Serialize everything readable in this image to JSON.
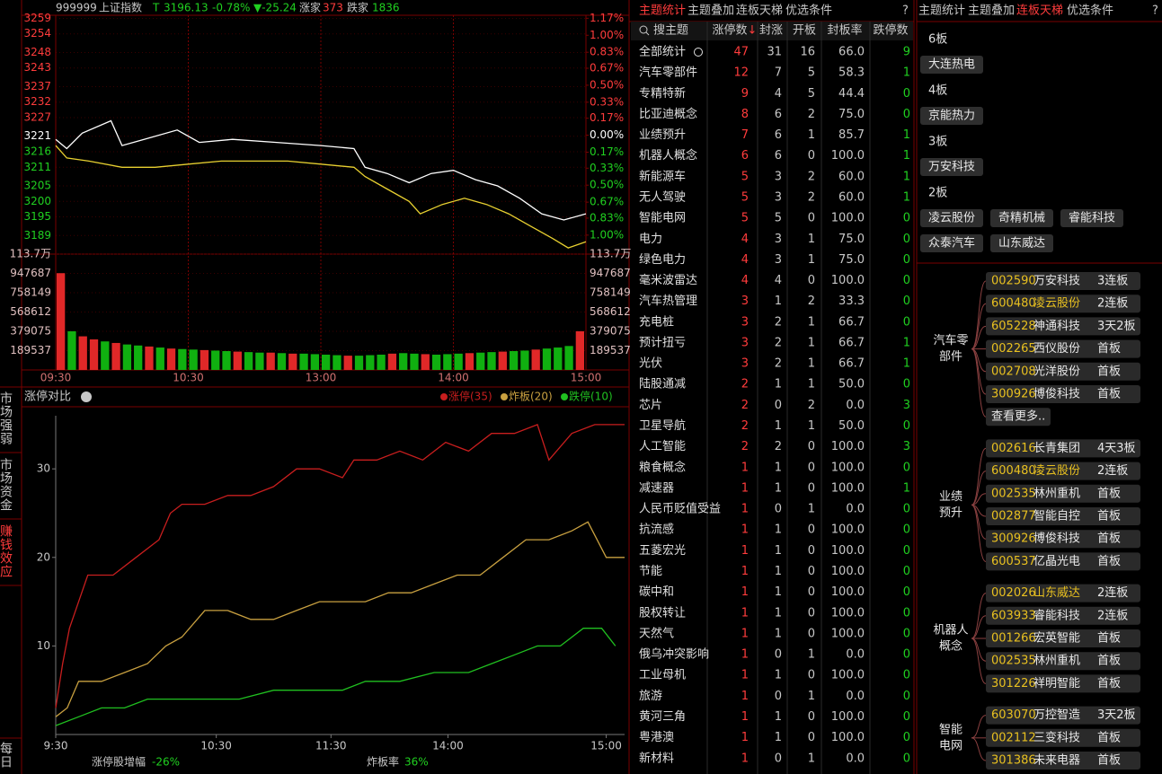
{
  "index_header": {
    "code": "999999",
    "name": "上证指数",
    "flag": "T",
    "price": "3196.13",
    "pct": "-0.78%",
    "change": "▼-25.24",
    "up_label": "涨家",
    "up_count": "373",
    "down_label": "跌家",
    "down_count": "1836"
  },
  "chart_data": [
    {
      "type": "line",
      "series": [
        {
          "color": "#ffffff",
          "x": [
            0,
            5,
            12,
            25,
            30,
            40,
            55,
            65,
            80,
            100,
            120,
            135,
            140,
            150,
            160,
            170,
            180,
            190,
            200,
            210,
            220,
            230,
            240
          ],
          "values": [
            3220,
            3217,
            3222,
            3226,
            3218,
            3220,
            3223,
            3219,
            3220,
            3219,
            3218,
            3217,
            3211,
            3209,
            3206,
            3209,
            3210,
            3207,
            3205,
            3201,
            3196,
            3194,
            3196
          ]
        },
        {
          "color": "#e8d030",
          "x": [
            0,
            5,
            15,
            30,
            45,
            60,
            75,
            90,
            105,
            120,
            135,
            140,
            150,
            160,
            165,
            175,
            185,
            195,
            205,
            215,
            225,
            232,
            240
          ],
          "values": [
            3218,
            3214,
            3213,
            3211,
            3211,
            3212,
            3213,
            3213,
            3213,
            3212,
            3211,
            3208,
            3204,
            3200,
            3196,
            3199,
            3201,
            3199,
            3196,
            3192,
            3188,
            3185,
            3187
          ]
        }
      ],
      "xlim": [
        0,
        240
      ],
      "xticks": [
        {
          "value": 0,
          "label": "09:30"
        },
        {
          "value": 60,
          "label": "10:30"
        },
        {
          "value": 120,
          "label": "13:00"
        },
        {
          "value": 180,
          "label": "14:00"
        },
        {
          "value": 240,
          "label": "15:00"
        }
      ],
      "ylim": [
        3183,
        3260
      ],
      "yticks": [
        3259,
        3254,
        3248,
        3243,
        3237,
        3232,
        3227,
        3221,
        3216,
        3211,
        3205,
        3200,
        3195,
        3189
      ],
      "y2lim": [
        -1.19,
        1.2
      ],
      "y2ticks": [
        {
          "value": 1.17,
          "label": "1.17%"
        },
        {
          "value": 1.0,
          "label": "1.00%"
        },
        {
          "value": 0.83,
          "label": "0.83%"
        },
        {
          "value": 0.67,
          "label": "0.67%"
        },
        {
          "value": 0.5,
          "label": "0.50%"
        },
        {
          "value": 0.33,
          "label": "0.33%"
        },
        {
          "value": 0.17,
          "label": "0.17%"
        },
        {
          "value": 0,
          "label": "0.00%"
        },
        {
          "value": -0.17,
          "label": "0.17%"
        },
        {
          "value": -0.33,
          "label": "0.33%"
        },
        {
          "value": -0.5,
          "label": "0.50%"
        },
        {
          "value": -0.67,
          "label": "0.67%"
        },
        {
          "value": -0.83,
          "label": "0.83%"
        },
        {
          "value": -1.0,
          "label": "1.00%"
        }
      ],
      "grid": true,
      "volume": {
        "ylim": [
          0,
          1137224
        ],
        "yticks": [
          {
            "value": 1137224,
            "label": "113.7万"
          },
          947687,
          758149,
          568612,
          379075,
          189537
        ],
        "values": [
          950000,
          380000,
          330000,
          300000,
          280000,
          265000,
          250000,
          240000,
          230000,
          220000,
          210000,
          205000,
          200000,
          195000,
          190000,
          185000,
          180000,
          175000,
          170000,
          170000,
          165000,
          160000,
          160000,
          155000,
          150000,
          145000,
          140000,
          140000,
          145000,
          150000,
          160000,
          165000,
          160000,
          155000,
          150000,
          155000,
          160000,
          165000,
          170000,
          175000,
          180000,
          185000,
          190000,
          200000,
          210000,
          220000,
          235000,
          380000
        ],
        "up": [
          true,
          false,
          true,
          true,
          false,
          true,
          false,
          false,
          true,
          false,
          true,
          false,
          false,
          true,
          false,
          false,
          true,
          false,
          false,
          true,
          false,
          true,
          false,
          false,
          false,
          false,
          true,
          false,
          false,
          false,
          true,
          false,
          false,
          true,
          false,
          false,
          false,
          true,
          false,
          false,
          true,
          false,
          false,
          true,
          false,
          false,
          false,
          true
        ],
        "up_color": "#e02828",
        "down_color": "#10b010"
      }
    },
    {
      "type": "line",
      "title": "涨停对比",
      "series": [
        {
          "name": "涨停(35)",
          "color": "#c81e1e",
          "x": [
            0,
            3,
            6,
            10,
            14,
            25,
            35,
            45,
            50,
            55,
            65,
            75,
            85,
            95,
            105,
            115,
            125,
            130,
            140,
            150,
            160,
            170,
            180,
            190,
            200,
            210,
            215,
            225,
            235,
            242,
            248
          ],
          "values": [
            3,
            8,
            12,
            15,
            18,
            18,
            20,
            22,
            25,
            26,
            26,
            27,
            27,
            28,
            30,
            30,
            29,
            31,
            31,
            32,
            31,
            33,
            32,
            34,
            34,
            35,
            31,
            34,
            35,
            35,
            35
          ]
        },
        {
          "name": "炸板(20)",
          "color": "#c8a040",
          "x": [
            0,
            5,
            10,
            20,
            30,
            40,
            48,
            55,
            65,
            75,
            85,
            95,
            105,
            115,
            125,
            135,
            145,
            155,
            165,
            175,
            185,
            195,
            205,
            215,
            225,
            232,
            240,
            248
          ],
          "values": [
            2,
            3,
            6,
            6,
            7,
            8,
            10,
            11,
            14,
            14,
            13,
            13,
            14,
            15,
            15,
            15,
            16,
            16,
            17,
            18,
            18,
            20,
            22,
            22,
            23,
            24,
            20,
            20
          ]
        },
        {
          "name": "跌停(10)",
          "color": "#20c020",
          "x": [
            0,
            10,
            20,
            30,
            40,
            60,
            80,
            95,
            110,
            125,
            135,
            150,
            165,
            180,
            190,
            200,
            210,
            220,
            230,
            238,
            244
          ],
          "values": [
            1,
            2,
            3,
            3,
            4,
            4,
            4,
            5,
            5,
            5,
            6,
            6,
            7,
            7,
            8,
            9,
            10,
            10,
            12,
            12,
            10
          ]
        }
      ],
      "xlim": [
        0,
        248
      ],
      "xticks": [
        {
          "value": 0,
          "label": "9:30"
        },
        {
          "value": 70,
          "label": "10:30"
        },
        {
          "value": 120,
          "label": "11:30"
        },
        {
          "value": 171,
          "label": "14:00"
        },
        {
          "value": 240,
          "label": "15:00"
        }
      ],
      "ylim": [
        0,
        36
      ],
      "yticks": [
        10,
        20,
        30
      ],
      "footer": [
        {
          "label": "涨停股增幅",
          "value": "-26%"
        },
        {
          "label": "炸板率",
          "value": "36%"
        }
      ]
    }
  ],
  "side_tabs": [
    "市场强弱",
    "市场资金",
    "赚钱效应",
    "每日"
  ],
  "theme_table": {
    "tabs": [
      "主题统计",
      "主题叠加",
      "连板天梯",
      "优选条件"
    ],
    "help": "?",
    "search": "搜主题",
    "columns": [
      "涨停数",
      "封涨",
      "开板",
      "封板率",
      "跌停数"
    ],
    "sort_arrow": "↓",
    "rows": [
      [
        "全部统计",
        47,
        31,
        16,
        "66.0",
        9
      ],
      [
        "汽车零部件",
        12,
        7,
        5,
        "58.3",
        1
      ],
      [
        "专精特新",
        9,
        4,
        5,
        "44.4",
        0
      ],
      [
        "比亚迪概念",
        8,
        6,
        2,
        "75.0",
        0
      ],
      [
        "业绩预升",
        7,
        6,
        1,
        "85.7",
        1
      ],
      [
        "机器人概念",
        6,
        6,
        0,
        "100.0",
        1
      ],
      [
        "新能源车",
        5,
        3,
        2,
        "60.0",
        1
      ],
      [
        "无人驾驶",
        5,
        3,
        2,
        "60.0",
        1
      ],
      [
        "智能电网",
        5,
        5,
        0,
        "100.0",
        0
      ],
      [
        "电力",
        4,
        3,
        1,
        "75.0",
        0
      ],
      [
        "绿色电力",
        4,
        3,
        1,
        "75.0",
        0
      ],
      [
        "毫米波雷达",
        4,
        4,
        0,
        "100.0",
        0
      ],
      [
        "汽车热管理",
        3,
        1,
        2,
        "33.3",
        0
      ],
      [
        "充电桩",
        3,
        2,
        1,
        "66.7",
        0
      ],
      [
        "预计扭亏",
        3,
        2,
        1,
        "66.7",
        1
      ],
      [
        "光伏",
        3,
        2,
        1,
        "66.7",
        1
      ],
      [
        "陆股通减",
        2,
        1,
        1,
        "50.0",
        0
      ],
      [
        "芯片",
        2,
        0,
        2,
        "0.0",
        3
      ],
      [
        "卫星导航",
        2,
        1,
        1,
        "50.0",
        0
      ],
      [
        "人工智能",
        2,
        2,
        0,
        "100.0",
        3
      ],
      [
        "粮食概念",
        1,
        1,
        0,
        "100.0",
        0
      ],
      [
        "减速器",
        1,
        1,
        0,
        "100.0",
        1
      ],
      [
        "人民币贬值受益",
        1,
        0,
        1,
        "0.0",
        0
      ],
      [
        "抗流感",
        1,
        1,
        0,
        "100.0",
        0
      ],
      [
        "五菱宏光",
        1,
        1,
        0,
        "100.0",
        0
      ],
      [
        "节能",
        1,
        1,
        0,
        "100.0",
        0
      ],
      [
        "碳中和",
        1,
        1,
        0,
        "100.0",
        0
      ],
      [
        "股权转让",
        1,
        1,
        0,
        "100.0",
        0
      ],
      [
        "天然气",
        1,
        1,
        0,
        "100.0",
        0
      ],
      [
        "俄乌冲突影响",
        1,
        0,
        1,
        "0.0",
        0
      ],
      [
        "工业母机",
        1,
        1,
        0,
        "100.0",
        0
      ],
      [
        "旅游",
        1,
        0,
        1,
        "0.0",
        0
      ],
      [
        "黄河三角",
        1,
        1,
        0,
        "100.0",
        0
      ],
      [
        "粤港澳",
        1,
        1,
        0,
        "100.0",
        0
      ],
      [
        "新材料",
        1,
        0,
        1,
        "0.0",
        0
      ]
    ]
  },
  "ladder": {
    "tabs": [
      "主题统计",
      "主题叠加",
      "连板天梯",
      "优选条件"
    ],
    "help": "?",
    "levels": [
      {
        "label": "6板",
        "stocks": [
          "大连热电"
        ]
      },
      {
        "label": "4板",
        "stocks": [
          "京能热力"
        ]
      },
      {
        "label": "3板",
        "stocks": [
          "万安科技"
        ]
      },
      {
        "label": "2板",
        "stocks": [
          "凌云股份",
          "奇精机械",
          "睿能科技",
          "众泰汽车",
          "山东威达"
        ]
      }
    ],
    "groups": [
      {
        "label": [
          "汽车零",
          "部件"
        ],
        "items": [
          {
            "code": "002590",
            "name": "万安科技",
            "tag": "3连板",
            "hot": false
          },
          {
            "code": "600480",
            "name": "凌云股份",
            "tag": "2连板",
            "hot": true
          },
          {
            "code": "605228",
            "name": "神通科技",
            "tag": "3天2板",
            "hot": false
          },
          {
            "code": "002265",
            "name": "西仪股份",
            "tag": "首板",
            "hot": false
          },
          {
            "code": "002708",
            "name": "光洋股份",
            "tag": "首板",
            "hot": false
          },
          {
            "code": "300926",
            "name": "博俊科技",
            "tag": "首板",
            "hot": false
          }
        ],
        "more": "查看更多.."
      },
      {
        "label": [
          "业绩",
          "预升"
        ],
        "items": [
          {
            "code": "002616",
            "name": "长青集团",
            "tag": "4天3板",
            "hot": false
          },
          {
            "code": "600480",
            "name": "凌云股份",
            "tag": "2连板",
            "hot": true
          },
          {
            "code": "002535",
            "name": "林州重机",
            "tag": "首板",
            "hot": false
          },
          {
            "code": "002877",
            "name": "智能自控",
            "tag": "首板",
            "hot": false
          },
          {
            "code": "300926",
            "name": "博俊科技",
            "tag": "首板",
            "hot": false
          },
          {
            "code": "600537",
            "name": "亿晶光电",
            "tag": "首板",
            "hot": false
          }
        ]
      },
      {
        "label": [
          "机器人",
          "概念"
        ],
        "items": [
          {
            "code": "002026",
            "name": "山东威达",
            "tag": "2连板",
            "hot": true
          },
          {
            "code": "603933",
            "name": "睿能科技",
            "tag": "2连板",
            "hot": false
          },
          {
            "code": "001266",
            "name": "宏英智能",
            "tag": "首板",
            "hot": false
          },
          {
            "code": "002535",
            "name": "林州重机",
            "tag": "首板",
            "hot": false
          },
          {
            "code": "301226",
            "name": "祥明智能",
            "tag": "首板",
            "hot": false
          }
        ]
      },
      {
        "label": [
          "智能",
          "电网"
        ],
        "items": [
          {
            "code": "603070",
            "name": "万控智造",
            "tag": "3天2板",
            "hot": false
          },
          {
            "code": "002112",
            "name": "三变科技",
            "tag": "首板",
            "hot": false
          },
          {
            "code": "301386",
            "name": "未来电器",
            "tag": "首板",
            "hot": false
          }
        ]
      }
    ]
  }
}
